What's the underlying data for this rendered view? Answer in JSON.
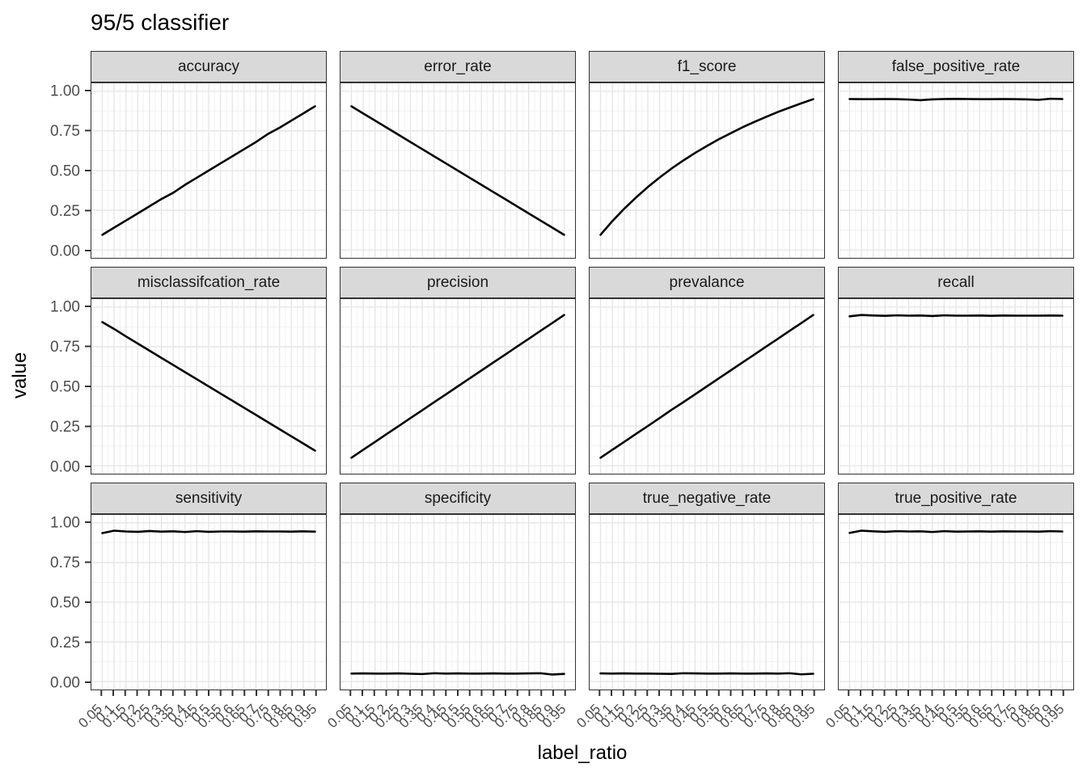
{
  "title": "95/5 classifier",
  "x_axis_title": "label_ratio",
  "y_axis_title": "value",
  "colors": {
    "line": "#000000",
    "strip_fill": "#D9D9D9",
    "panel_border": "#333333",
    "grid_major": "#E4E4E4",
    "grid_minor": "#F1F1F1",
    "tick_label": "#4D4D4D",
    "tick_mark": "#333333",
    "title_text": "#000000"
  },
  "chart_data": {
    "type": "line",
    "layout": "facet_wrap, 4 columns x 3 rows, shared axes",
    "grid": "on",
    "xlabel": "label_ratio",
    "ylabel": "value",
    "ylim": [
      0,
      1
    ],
    "xlim": [
      0.05,
      0.95
    ],
    "x": [
      0.05,
      0.1,
      0.15,
      0.2,
      0.25,
      0.3,
      0.35,
      0.4,
      0.45,
      0.5,
      0.55,
      0.6,
      0.65,
      0.7,
      0.75,
      0.8,
      0.85,
      0.9,
      0.95
    ],
    "x_tick_labels": [
      "0.05",
      "0.1",
      "0.15",
      "0.2",
      "0.25",
      "0.3",
      "0.35",
      "0.4",
      "0.45",
      "0.5",
      "0.55",
      "0.6",
      "0.65",
      "0.7",
      "0.75",
      "0.8",
      "0.85",
      "0.9",
      "0.95"
    ],
    "y_tick_labels": [
      "1.00",
      "0.75",
      "0.50",
      "0.25",
      "0.00"
    ],
    "facets": [
      {
        "label": "accuracy",
        "values": [
          0.095,
          0.14,
          0.185,
          0.23,
          0.275,
          0.32,
          0.36,
          0.41,
          0.455,
          0.5,
          0.545,
          0.59,
          0.635,
          0.68,
          0.73,
          0.77,
          0.815,
          0.86,
          0.905
        ]
      },
      {
        "label": "error_rate",
        "values": [
          0.905,
          0.86,
          0.815,
          0.77,
          0.725,
          0.68,
          0.635,
          0.59,
          0.545,
          0.5,
          0.455,
          0.41,
          0.365,
          0.32,
          0.275,
          0.23,
          0.185,
          0.14,
          0.095
        ]
      },
      {
        "label": "f1_score",
        "values": [
          0.095,
          0.181,
          0.259,
          0.33,
          0.396,
          0.456,
          0.512,
          0.563,
          0.611,
          0.655,
          0.697,
          0.735,
          0.772,
          0.806,
          0.838,
          0.869,
          0.897,
          0.924,
          0.95
        ]
      },
      {
        "label": "false_positive_rate",
        "values": [
          0.951,
          0.95,
          0.95,
          0.951,
          0.95,
          0.948,
          0.944,
          0.949,
          0.951,
          0.952,
          0.951,
          0.95,
          0.95,
          0.951,
          0.95,
          0.949,
          0.946,
          0.953,
          0.951
        ]
      },
      {
        "label": "misclassifcation_rate",
        "values": [
          0.905,
          0.862,
          0.815,
          0.77,
          0.725,
          0.68,
          0.635,
          0.59,
          0.545,
          0.5,
          0.455,
          0.41,
          0.365,
          0.32,
          0.275,
          0.23,
          0.185,
          0.14,
          0.095
        ]
      },
      {
        "label": "precision",
        "values": [
          0.05,
          0.1,
          0.15,
          0.2,
          0.25,
          0.3,
          0.35,
          0.4,
          0.45,
          0.5,
          0.55,
          0.6,
          0.65,
          0.7,
          0.75,
          0.8,
          0.85,
          0.9,
          0.95
        ]
      },
      {
        "label": "prevalance",
        "values": [
          0.05,
          0.1,
          0.15,
          0.2,
          0.25,
          0.3,
          0.352,
          0.4,
          0.45,
          0.5,
          0.55,
          0.6,
          0.65,
          0.7,
          0.75,
          0.8,
          0.85,
          0.9,
          0.95
        ]
      },
      {
        "label": "recall",
        "values": [
          0.942,
          0.95,
          0.947,
          0.945,
          0.948,
          0.946,
          0.947,
          0.944,
          0.948,
          0.946,
          0.946,
          0.947,
          0.945,
          0.947,
          0.946,
          0.946,
          0.946,
          0.947,
          0.946
        ]
      },
      {
        "label": "sensitivity",
        "values": [
          0.936,
          0.951,
          0.946,
          0.944,
          0.949,
          0.945,
          0.947,
          0.943,
          0.948,
          0.944,
          0.946,
          0.946,
          0.945,
          0.947,
          0.946,
          0.946,
          0.945,
          0.947,
          0.945
        ]
      },
      {
        "label": "specificity",
        "values": [
          0.05,
          0.051,
          0.05,
          0.05,
          0.051,
          0.049,
          0.047,
          0.052,
          0.05,
          0.051,
          0.05,
          0.05,
          0.051,
          0.05,
          0.05,
          0.051,
          0.052,
          0.044,
          0.048
        ]
      },
      {
        "label": "true_negative_rate",
        "values": [
          0.051,
          0.05,
          0.051,
          0.05,
          0.05,
          0.049,
          0.048,
          0.052,
          0.051,
          0.05,
          0.05,
          0.051,
          0.05,
          0.05,
          0.051,
          0.05,
          0.052,
          0.045,
          0.049
        ]
      },
      {
        "label": "true_positive_rate",
        "values": [
          0.937,
          0.951,
          0.947,
          0.944,
          0.948,
          0.946,
          0.947,
          0.943,
          0.948,
          0.945,
          0.946,
          0.947,
          0.945,
          0.947,
          0.946,
          0.946,
          0.945,
          0.948,
          0.946
        ]
      }
    ]
  }
}
